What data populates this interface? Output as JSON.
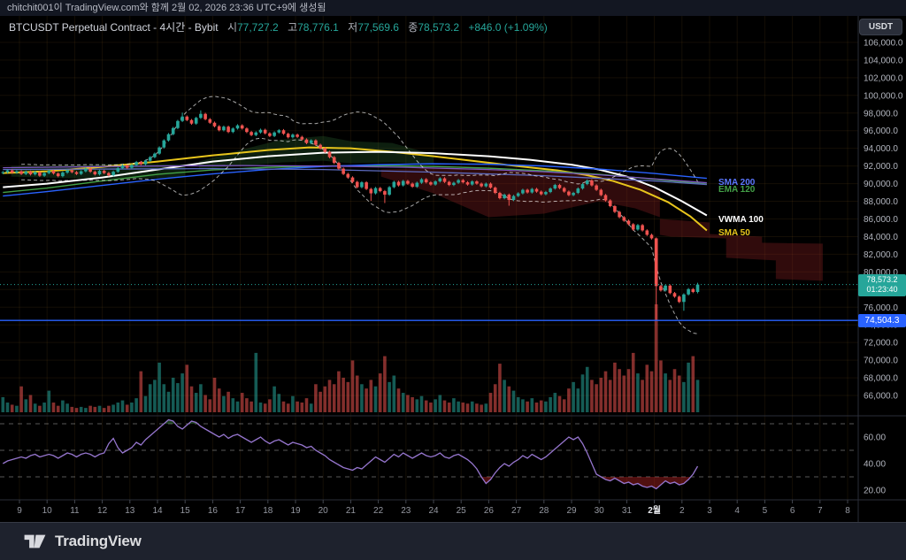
{
  "attribution": {
    "text": "chitchit001이 TradingView.com와 함께 2월 02, 2026 23:36 UTC+9에 생성됨"
  },
  "header": {
    "title": "BTCUSDT Perpetual Contract - 4시간 - Bybit",
    "open_label": "시",
    "open": "77,727.2",
    "high_label": "고",
    "high": "78,776.1",
    "low_label": "저",
    "low": "77,569.6",
    "close_label": "종",
    "close": "78,573.2",
    "change": "+846.0 (+1.09%)"
  },
  "price_scale": {
    "currency": "USDT"
  },
  "badges": {
    "current_price": "78,573.2",
    "countdown": "01:23:40",
    "alert_price": "74,504.3"
  },
  "footer": {
    "brand": "TradingView"
  },
  "chart_data": {
    "type": "candlestick",
    "symbol": "BTCUSDT Perpetual Contract",
    "interval": "4시간",
    "exchange": "Bybit",
    "ylim": [
      64000,
      109000
    ],
    "price_ticks": {
      "min": 66000,
      "max": 106000,
      "step": 2000
    },
    "time_labels": [
      "9",
      "10",
      "11",
      "12",
      "13",
      "14",
      "15",
      "16",
      "17",
      "18",
      "19",
      "20",
      "21",
      "22",
      "23",
      "24",
      "25",
      "26",
      "27",
      "28",
      "29",
      "30",
      "31",
      "2월",
      "2",
      "3",
      "4",
      "5",
      "6",
      "7",
      "8"
    ],
    "month_label_index": 23,
    "colors": {
      "up": "#26a69a",
      "down": "#ef5350",
      "vol_up": "rgba(38,166,154,0.55)",
      "vol_down": "rgba(239,83,80,0.55)",
      "grid": "rgba(255,180,60,0.08)",
      "bb": "rgba(255,255,255,0.65)",
      "rsi": "#9575cd",
      "rsi_band": "rgba(255,255,255,0.35)",
      "overbought_fill": "rgba(76,175,80,0.35)",
      "oversold_fill": "rgba(200,40,40,0.40)",
      "axis_text": "#b2b5be",
      "axis_text_strong": "#e6e8ec",
      "separator": "#2a2e39"
    },
    "candles": {
      "first_open": 91200,
      "default_wick": 130,
      "closes": [
        91300,
        91500,
        91250,
        91400,
        91100,
        91350,
        91050,
        91300,
        90900,
        91200,
        91450,
        91150,
        90850,
        91250,
        91500,
        91300,
        91100,
        91400,
        91700,
        91350,
        91050,
        91450,
        91200,
        90950,
        91350,
        91750,
        92050,
        91800,
        92100,
        92450,
        92200,
        92600,
        93000,
        93400,
        94100,
        94900,
        95600,
        96300,
        97100,
        97600,
        97200,
        96800,
        97450,
        97900,
        97300,
        96900,
        96500,
        96050,
        96450,
        95850,
        96250,
        96600,
        96250,
        95850,
        95500,
        95800,
        96100,
        95700,
        95400,
        95800,
        96050,
        95650,
        95250,
        95550,
        95300,
        95000,
        94600,
        94900,
        94400,
        94000,
        93600,
        93000,
        92350,
        91700,
        91100,
        90700,
        90200,
        89600,
        90150,
        89400,
        88900,
        89500,
        89150,
        88750,
        89600,
        90200,
        89800,
        90300,
        90000,
        89650,
        90100,
        90500,
        90150,
        89900,
        90250,
        90600,
        90200,
        89850,
        90100,
        90400,
        90150,
        89900,
        90250,
        90000,
        89700,
        90000,
        89550,
        88950,
        88350,
        88750,
        88150,
        88600,
        88900,
        89300,
        89000,
        89400,
        89100,
        88800,
        89050,
        89450,
        89850,
        89500,
        89100,
        88700,
        88950,
        89450,
        89950,
        90350,
        89800,
        89300,
        88700,
        88100,
        87450,
        86800,
        86200,
        85800,
        85400,
        84800,
        85300,
        84700,
        84200,
        83800,
        78400,
        77900,
        78450,
        77600,
        77200,
        76600,
        77450,
        78050,
        77727.2,
        78573.2
      ],
      "wick_overrides": {
        "39": [
          98050,
          null
        ],
        "43": [
          98300,
          null
        ],
        "80": [
          null,
          88050
        ],
        "83": [
          null,
          87800
        ],
        "110": [
          null,
          87500
        ],
        "142": [
          83900,
          74504.3
        ],
        "148": [
          null,
          75600
        ],
        "151": [
          78776.1,
          77569.6
        ]
      }
    },
    "volumes": [
      14,
      9,
      7,
      6,
      24,
      12,
      16,
      8,
      6,
      9,
      20,
      9,
      6,
      11,
      8,
      5,
      4,
      5,
      4,
      6,
      5,
      6,
      4,
      6,
      7,
      9,
      11,
      7,
      9,
      13,
      38,
      15,
      26,
      30,
      46,
      26,
      19,
      32,
      27,
      36,
      44,
      24,
      18,
      26,
      16,
      12,
      32,
      22,
      15,
      19,
      13,
      10,
      18,
      13,
      10,
      55,
      9,
      8,
      12,
      24,
      17,
      10,
      8,
      15,
      10,
      9,
      13,
      8,
      26,
      19,
      24,
      30,
      26,
      38,
      32,
      28,
      48,
      34,
      26,
      22,
      30,
      24,
      36,
      52,
      28,
      34,
      22,
      18,
      16,
      14,
      12,
      15,
      11,
      9,
      12,
      16,
      11,
      9,
      13,
      10,
      9,
      8,
      10,
      8,
      7,
      8,
      18,
      26,
      45,
      30,
      24,
      20,
      14,
      12,
      10,
      13,
      9,
      11,
      10,
      14,
      18,
      15,
      12,
      22,
      28,
      22,
      35,
      42,
      30,
      26,
      32,
      38,
      30,
      46,
      40,
      34,
      40,
      55,
      36,
      30,
      44,
      38,
      100,
      48,
      36,
      30,
      40,
      34,
      28,
      46,
      52,
      30
    ],
    "rsi": {
      "values": [
        40,
        42,
        43,
        44,
        45,
        44,
        46,
        47,
        45,
        46,
        47,
        46,
        44,
        46,
        48,
        47,
        45,
        47,
        48,
        47,
        45,
        47,
        48,
        55,
        59,
        52,
        48,
        50,
        52,
        56,
        54,
        58,
        61,
        64,
        67,
        70,
        73,
        72,
        68,
        66,
        69,
        72,
        71,
        68,
        66,
        64,
        62,
        60,
        62,
        59,
        61,
        62,
        60,
        58,
        56,
        58,
        60,
        57,
        55,
        57,
        58,
        56,
        54,
        56,
        55,
        54,
        52,
        53,
        50,
        48,
        46,
        43,
        41,
        39,
        37,
        36,
        35,
        37,
        36,
        39,
        42,
        45,
        43,
        41,
        44,
        47,
        45,
        48,
        46,
        44,
        46,
        48,
        46,
        45,
        46,
        48,
        45,
        44,
        46,
        47,
        45,
        43,
        40,
        36,
        30,
        25,
        28,
        33,
        37,
        40,
        38,
        41,
        43,
        46,
        44,
        47,
        45,
        43,
        45,
        48,
        51,
        54,
        57,
        60,
        58,
        60,
        55,
        48,
        40,
        32,
        30,
        28,
        27,
        29,
        27,
        25,
        26,
        24,
        25,
        23,
        22,
        23,
        21,
        24,
        27,
        25,
        26,
        24,
        25,
        28,
        32,
        38
      ],
      "bands": [
        70,
        50,
        30
      ],
      "ticks": [
        60,
        40,
        20
      ]
    },
    "bollinger": {
      "window": 20,
      "mult": 2.2
    },
    "ma_lines": [
      {
        "name": "SMA 50",
        "color": "#e8c51c",
        "width": 2,
        "points": [
          [
            -0.6,
            91200
          ],
          [
            1,
            91400
          ],
          [
            3,
            91900
          ],
          [
            5,
            92500
          ],
          [
            7,
            93200
          ],
          [
            9,
            93800
          ],
          [
            10.5,
            94100
          ],
          [
            12,
            94000
          ],
          [
            13.5,
            93600
          ],
          [
            15,
            93100
          ],
          [
            16.5,
            92550
          ],
          [
            18,
            92000
          ],
          [
            19.5,
            91500
          ],
          [
            20.5,
            91000
          ],
          [
            21.5,
            90300
          ],
          [
            22.5,
            89300
          ],
          [
            23.5,
            87900
          ],
          [
            24.3,
            86300
          ],
          [
            24.9,
            84700
          ]
        ]
      },
      {
        "name": "VWMA 100",
        "color": "#ffffff",
        "width": 2,
        "points": [
          [
            -0.6,
            89600
          ],
          [
            1,
            90000
          ],
          [
            3,
            90700
          ],
          [
            5,
            91600
          ],
          [
            7,
            92500
          ],
          [
            9,
            93100
          ],
          [
            11,
            93500
          ],
          [
            13,
            93600
          ],
          [
            15,
            93450
          ],
          [
            17,
            93100
          ],
          [
            18.5,
            92700
          ],
          [
            20,
            92150
          ],
          [
            21,
            91600
          ],
          [
            22,
            90800
          ],
          [
            23,
            89600
          ],
          [
            24,
            88000
          ],
          [
            24.9,
            86400
          ]
        ]
      },
      {
        "name": "EMA 120",
        "color": "#43a047",
        "width": 1.4,
        "points": [
          [
            -0.6,
            89000
          ],
          [
            1,
            89500
          ],
          [
            3,
            90300
          ],
          [
            5,
            91050
          ],
          [
            7,
            91550
          ],
          [
            9,
            91850
          ],
          [
            11,
            92000
          ],
          [
            13,
            92050
          ],
          [
            15,
            91950
          ],
          [
            17,
            91750
          ],
          [
            19,
            91450
          ],
          [
            21,
            91050
          ],
          [
            23,
            90500
          ],
          [
            24.9,
            89950
          ]
        ]
      },
      {
        "name": "SMA 200",
        "color": "#2962ff",
        "width": 1.4,
        "points": [
          [
            -0.6,
            88600
          ],
          [
            1,
            89100
          ],
          [
            3,
            89800
          ],
          [
            5,
            90500
          ],
          [
            7,
            91100
          ],
          [
            9,
            91600
          ],
          [
            11,
            91950
          ],
          [
            13,
            92150
          ],
          [
            15,
            92250
          ],
          [
            17,
            92200
          ],
          [
            19,
            92000
          ],
          [
            21,
            91650
          ],
          [
            23,
            91150
          ],
          [
            24.9,
            90600
          ]
        ]
      },
      {
        "name": "",
        "color": "#7e57c2",
        "width": 1.3,
        "points": [
          [
            -0.6,
            91800
          ],
          [
            2,
            91900
          ],
          [
            5,
            92000
          ],
          [
            8,
            92050
          ],
          [
            11,
            92000
          ],
          [
            14,
            91850
          ],
          [
            17,
            91600
          ],
          [
            19,
            91350
          ],
          [
            21,
            91000
          ],
          [
            23,
            90550
          ],
          [
            24.9,
            90100
          ]
        ]
      },
      {
        "name": "",
        "color": "#5c6bc0",
        "width": 1.3,
        "points": [
          [
            -0.6,
            91600
          ],
          [
            3,
            91650
          ],
          [
            7,
            91700
          ],
          [
            11,
            91600
          ],
          [
            15,
            91300
          ],
          [
            19,
            90900
          ],
          [
            23,
            90300
          ],
          [
            24.9,
            89900
          ]
        ]
      }
    ],
    "indicator_labels": [
      {
        "text": "SMA 200",
        "color": "#5b77ff",
        "x": 812,
        "y": 191
      },
      {
        "text": "EMA 120",
        "color": "#43a047",
        "x": 812,
        "y": 199
      },
      {
        "text": "VWMA 100",
        "color": "#ffffff",
        "x": 812,
        "y": 233
      },
      {
        "text": "SMA 50",
        "color": "#e8c51c",
        "x": 812,
        "y": 248
      }
    ],
    "clouds": [
      {
        "color": "rgba(60,140,70,0.22)",
        "points": [
          [
            -0.3,
            92000
          ],
          [
            2,
            92100
          ],
          [
            4,
            92300
          ],
          [
            6,
            92200
          ],
          [
            6,
            90800
          ],
          [
            4,
            90500
          ],
          [
            2,
            90600
          ],
          [
            -0.3,
            90800
          ]
        ]
      },
      {
        "color": "rgba(60,140,70,0.22)",
        "points": [
          [
            6.5,
            92500
          ],
          [
            8,
            93800
          ],
          [
            9.5,
            95000
          ],
          [
            11,
            95400
          ],
          [
            12,
            94800
          ],
          [
            13.5,
            94600
          ],
          [
            15,
            93300
          ],
          [
            15,
            92200
          ],
          [
            13.5,
            92400
          ],
          [
            12,
            92300
          ],
          [
            11,
            92600
          ],
          [
            9.5,
            92400
          ],
          [
            8,
            92000
          ],
          [
            6.5,
            91600
          ]
        ]
      },
      {
        "color": "rgba(160,35,40,0.30)",
        "points": [
          [
            13.1,
            91600
          ],
          [
            15,
            91800
          ],
          [
            17,
            91600
          ],
          [
            19,
            91300
          ],
          [
            21,
            90900
          ],
          [
            22.3,
            90400
          ],
          [
            23.2,
            89000
          ],
          [
            23.2,
            86200
          ],
          [
            22.3,
            87200
          ],
          [
            21,
            88000
          ],
          [
            19,
            86600
          ],
          [
            17,
            86200
          ],
          [
            15,
            88900
          ],
          [
            13.1,
            90800
          ]
        ]
      },
      {
        "color": "rgba(160,35,40,0.30)",
        "points": [
          [
            23.2,
            86000
          ],
          [
            25.0,
            85600
          ],
          [
            25.0,
            84300
          ],
          [
            26.9,
            84000
          ],
          [
            26.9,
            83300
          ],
          [
            29.1,
            83200
          ],
          [
            29.1,
            79000
          ],
          [
            27.4,
            79200
          ],
          [
            27.4,
            81300
          ],
          [
            25.6,
            81600
          ],
          [
            25.6,
            83800
          ],
          [
            23.6,
            84000
          ],
          [
            23.2,
            84200
          ]
        ]
      }
    ],
    "levels": {
      "current_price_line": {
        "value": 78573.2,
        "color": "#26a69a"
      },
      "alert_line": {
        "value": 74504.3,
        "color": "#2962ff"
      }
    }
  }
}
